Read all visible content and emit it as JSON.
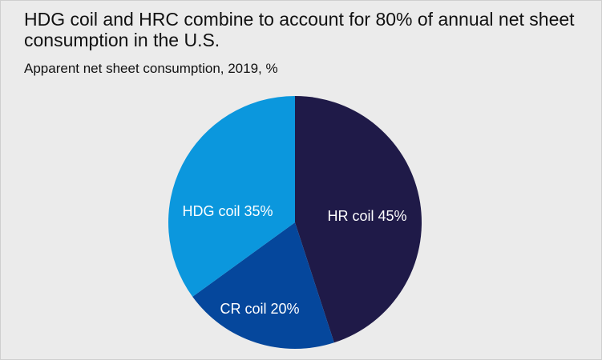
{
  "chart_data": {
    "type": "pie",
    "title": "HDG coil and HRC combine to account for 80% of annual net sheet consumption in the U.S.",
    "subtitle": "Apparent net sheet consumption, 2019, %",
    "slices": [
      {
        "label": "HR coil 45%",
        "name": "HR coil",
        "value": 45,
        "color": "#1f1a48"
      },
      {
        "label": "CR coil 20%",
        "name": "CR coil",
        "value": 20,
        "color": "#05479c"
      },
      {
        "label": "HDG coil 35%",
        "name": "HDG coil",
        "value": 35,
        "color": "#0b97dd"
      }
    ],
    "start_angle": "12 o'clock",
    "direction": "clockwise"
  },
  "colors": {
    "background": "#ebebeb",
    "text": "#111111",
    "label_text": "#ffffff"
  }
}
